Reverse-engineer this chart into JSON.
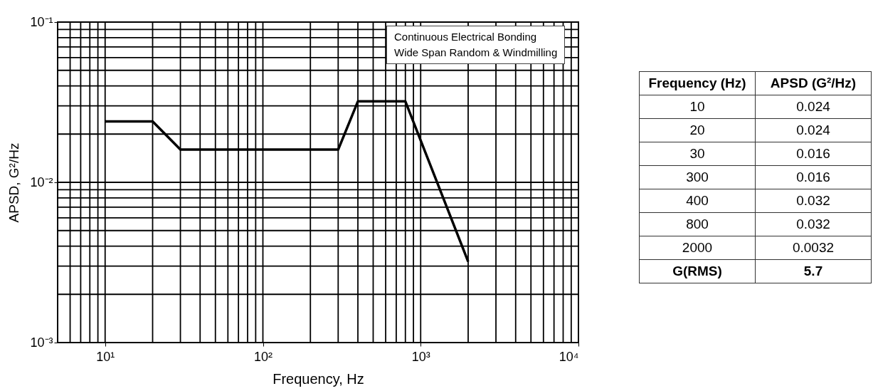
{
  "chart_data": [
    {
      "type": "line",
      "xlabel": "Frequency, Hz",
      "ylabel": "APSD, G²/Hz",
      "x": [
        10,
        20,
        30,
        300,
        400,
        800,
        2000
      ],
      "series": [
        {
          "color": "#000000",
          "values": [
            0.024,
            0.024,
            0.016,
            0.016,
            0.032,
            0.032,
            0.0032
          ]
        }
      ],
      "log": "xy",
      "xlim": [
        5,
        10000
      ],
      "ylim": [
        0.001,
        0.1
      ],
      "xticks": [
        {
          "value": 10,
          "label": "10¹"
        },
        {
          "value": 100,
          "label": "10²"
        },
        {
          "value": 1000,
          "label": "10³"
        },
        {
          "value": 10000,
          "label": "10⁴"
        }
      ],
      "yticks": [
        {
          "value": 0.001,
          "label": "10⁻³"
        },
        {
          "value": 0.01,
          "label": "10⁻²"
        },
        {
          "value": 0.1,
          "label": "10⁻¹"
        }
      ],
      "grid": true,
      "marker": "none",
      "line_style": "solid",
      "annotations": [
        "Continuous Electrical Bonding",
        "Wide Span Random & Windmilling"
      ]
    },
    {
      "type": "other",
      "xlabel": "Frequency (Hz)",
      "ylabel": "APSD (G²/Hz)",
      "categories": [
        "10",
        "20",
        "30",
        "300",
        "400",
        "800",
        "2000"
      ],
      "values": [
        0.024,
        0.024,
        0.016,
        0.016,
        0.032,
        0.032,
        0.0032
      ],
      "data_labels": true,
      "annotations": [
        "G(RMS)",
        "5.7"
      ]
    }
  ]
}
